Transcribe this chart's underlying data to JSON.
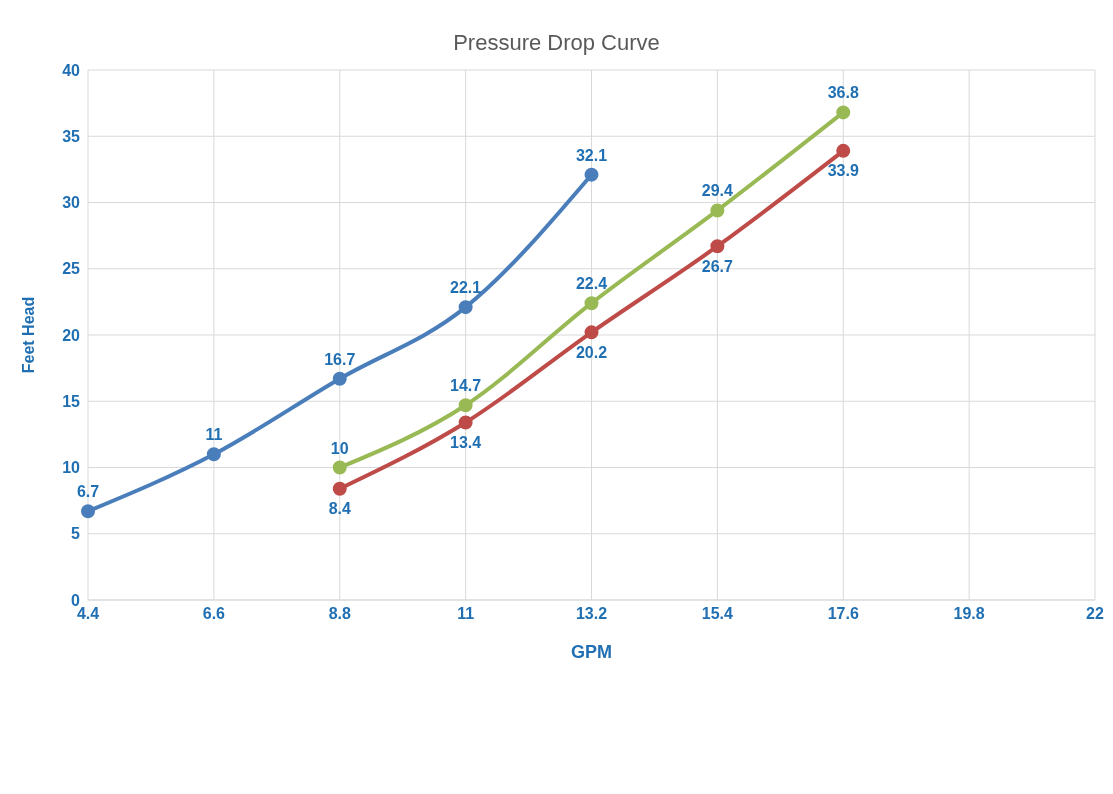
{
  "chart_data": {
    "type": "line",
    "title": "Pressure Drop Curve",
    "xlabel": "GPM",
    "ylabel": "Feet Head",
    "categories": [
      "4.4",
      "6.6",
      "8.8",
      "11",
      "13.2",
      "15.4",
      "17.6",
      "19.8",
      "22"
    ],
    "series": [
      {
        "color": "#4a7ebb",
        "values": [
          6.7,
          11,
          16.7,
          22.1,
          32.1,
          null,
          null,
          null,
          null
        ]
      },
      {
        "color": "#be4b48",
        "values": [
          null,
          null,
          8.4,
          13.4,
          20.2,
          26.7,
          33.9,
          null,
          null
        ]
      },
      {
        "color": "#98b954",
        "values": [
          null,
          null,
          10,
          14.7,
          22.4,
          29.4,
          36.8,
          null,
          null
        ]
      }
    ],
    "ylim": [
      0,
      40
    ],
    "yticks": [
      0,
      5,
      10,
      15,
      20,
      25,
      30,
      35,
      40
    ],
    "grid": true,
    "marker": "circle",
    "line_style": "solid",
    "data_labels": true,
    "legend": false
  }
}
